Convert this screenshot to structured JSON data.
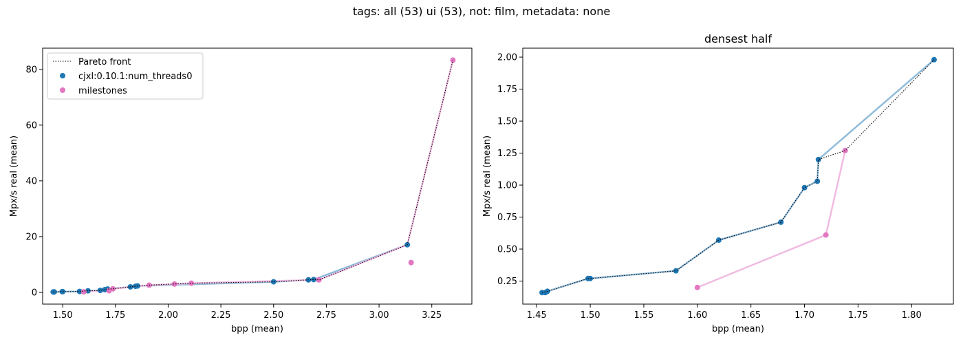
{
  "figure": {
    "suptitle": "tags: all (53) ui (53), not: film, metadata: none"
  },
  "colors": {
    "cjxl": "#1f77b4",
    "milestones": "#e377c2",
    "pareto": "#000000"
  },
  "chart_data": [
    {
      "type": "scatter",
      "title": "",
      "xlabel": "bpp (mean)",
      "ylabel": "Mpx/s real (mean)",
      "xlim": [
        1.405,
        3.44
      ],
      "ylim": [
        -4.2,
        87.6
      ],
      "xticks": [
        1.5,
        1.75,
        2.0,
        2.25,
        2.5,
        2.75,
        3.0,
        3.25
      ],
      "xtick_labels": [
        "1.50",
        "1.75",
        "2.00",
        "2.25",
        "2.50",
        "2.75",
        "3.00",
        "3.25"
      ],
      "yticks": [
        0,
        20,
        40,
        60,
        80
      ],
      "ytick_labels": [
        "0",
        "20",
        "40",
        "60",
        "80"
      ],
      "grid": false,
      "legend": {
        "placement": "upper-left",
        "entries": [
          {
            "label": "Pareto front",
            "kind": "line",
            "series": "pareto"
          },
          {
            "label": "cjxl:0.10.1:num_threads0",
            "kind": "marker",
            "series": "cjxl"
          },
          {
            "label": "milestones",
            "kind": "marker",
            "series": "milestones"
          }
        ]
      },
      "series": [
        {
          "name": "cjxl:0.10.1:num_threads0",
          "key": "cjxl",
          "x": [
            1.455,
            1.458,
            1.46,
            1.498,
            1.5,
            1.58,
            1.62,
            1.678,
            1.7,
            1.712,
            1.713,
            1.821,
            1.845,
            1.855,
            2.5,
            2.665,
            2.69,
            3.134
          ],
          "y": [
            0.16,
            0.16,
            0.17,
            0.27,
            0.27,
            0.33,
            0.57,
            0.71,
            0.98,
            1.03,
            1.2,
            1.98,
            2.2,
            2.3,
            3.8,
            4.5,
            4.6,
            17.1
          ],
          "line": [
            [
              1.455,
              0.16
            ],
            [
              1.46,
              0.17
            ],
            [
              1.498,
              0.27
            ],
            [
              1.5,
              0.27
            ],
            [
              1.58,
              0.33
            ],
            [
              1.62,
              0.57
            ],
            [
              1.678,
              0.71
            ],
            [
              1.7,
              0.98
            ],
            [
              1.712,
              1.03
            ],
            [
              1.713,
              1.2
            ],
            [
              1.821,
              1.98
            ],
            [
              1.855,
              2.3
            ],
            [
              2.5,
              3.8
            ],
            [
              2.69,
              4.6
            ],
            [
              3.134,
              17.1
            ]
          ]
        },
        {
          "name": "milestones",
          "key": "milestones",
          "x": [
            1.6,
            1.72,
            1.738,
            1.91,
            2.03,
            2.11,
            2.715,
            3.152,
            3.35
          ],
          "y": [
            0.2,
            0.61,
            1.27,
            2.6,
            3.0,
            3.3,
            4.5,
            10.7,
            83.3
          ],
          "line": [
            [
              1.6,
              0.2
            ],
            [
              1.72,
              0.61
            ],
            [
              1.738,
              1.27
            ],
            [
              1.91,
              2.6
            ],
            [
              2.03,
              3.0
            ],
            [
              2.11,
              3.3
            ],
            [
              2.715,
              4.5
            ],
            [
              3.134,
              17.1
            ],
            [
              3.35,
              83.3
            ]
          ]
        }
      ],
      "pareto_front": {
        "name": "Pareto front",
        "points": [
          [
            1.455,
            0.16
          ],
          [
            1.46,
            0.17
          ],
          [
            1.498,
            0.27
          ],
          [
            1.5,
            0.27
          ],
          [
            1.58,
            0.33
          ],
          [
            1.62,
            0.57
          ],
          [
            1.678,
            0.71
          ],
          [
            1.7,
            0.98
          ],
          [
            1.712,
            1.03
          ],
          [
            1.713,
            1.2
          ],
          [
            1.738,
            1.27
          ],
          [
            1.821,
            1.98
          ],
          [
            1.855,
            2.3
          ],
          [
            1.91,
            2.6
          ],
          [
            2.03,
            3.0
          ],
          [
            2.11,
            3.3
          ],
          [
            2.5,
            3.8
          ],
          [
            2.69,
            4.6
          ],
          [
            2.715,
            4.5
          ],
          [
            3.134,
            17.1
          ],
          [
            3.35,
            83.3
          ]
        ]
      }
    },
    {
      "type": "scatter",
      "title": "densest half",
      "xlabel": "bpp (mean)",
      "ylabel": "Mpx/s real (mean)",
      "xlim": [
        1.437,
        1.839
      ],
      "ylim": [
        0.07,
        2.07
      ],
      "xticks": [
        1.45,
        1.5,
        1.55,
        1.6,
        1.65,
        1.7,
        1.75,
        1.8
      ],
      "xtick_labels": [
        "1.45",
        "1.50",
        "1.55",
        "1.60",
        "1.65",
        "1.70",
        "1.75",
        "1.80"
      ],
      "yticks": [
        0.25,
        0.5,
        0.75,
        1.0,
        1.25,
        1.5,
        1.75,
        2.0
      ],
      "ytick_labels": [
        "0.25",
        "0.50",
        "0.75",
        "1.00",
        "1.25",
        "1.50",
        "1.75",
        "2.00"
      ],
      "grid": false,
      "series": [
        {
          "name": "cjxl:0.10.1:num_threads0",
          "key": "cjxl",
          "x": [
            1.455,
            1.458,
            1.46,
            1.498,
            1.5,
            1.58,
            1.62,
            1.678,
            1.7,
            1.712,
            1.713,
            1.821
          ],
          "y": [
            0.16,
            0.16,
            0.17,
            0.27,
            0.27,
            0.33,
            0.57,
            0.71,
            0.98,
            1.03,
            1.2,
            1.98
          ],
          "line": [
            [
              1.455,
              0.16
            ],
            [
              1.46,
              0.17
            ],
            [
              1.498,
              0.27
            ],
            [
              1.5,
              0.27
            ],
            [
              1.58,
              0.33
            ],
            [
              1.62,
              0.57
            ],
            [
              1.678,
              0.71
            ],
            [
              1.7,
              0.98
            ],
            [
              1.712,
              1.03
            ],
            [
              1.713,
              1.2
            ],
            [
              1.821,
              1.98
            ]
          ]
        },
        {
          "name": "milestones",
          "key": "milestones",
          "x": [
            1.6,
            1.72,
            1.738
          ],
          "y": [
            0.2,
            0.61,
            1.27
          ],
          "line": [
            [
              1.6,
              0.2
            ],
            [
              1.72,
              0.61
            ],
            [
              1.738,
              1.27
            ]
          ]
        }
      ],
      "pareto_front": {
        "name": "Pareto front",
        "points": [
          [
            1.455,
            0.16
          ],
          [
            1.46,
            0.17
          ],
          [
            1.498,
            0.27
          ],
          [
            1.5,
            0.27
          ],
          [
            1.58,
            0.33
          ],
          [
            1.62,
            0.57
          ],
          [
            1.678,
            0.71
          ],
          [
            1.7,
            0.98
          ],
          [
            1.712,
            1.03
          ],
          [
            1.713,
            1.2
          ],
          [
            1.738,
            1.27
          ],
          [
            1.821,
            1.98
          ]
        ]
      }
    }
  ]
}
